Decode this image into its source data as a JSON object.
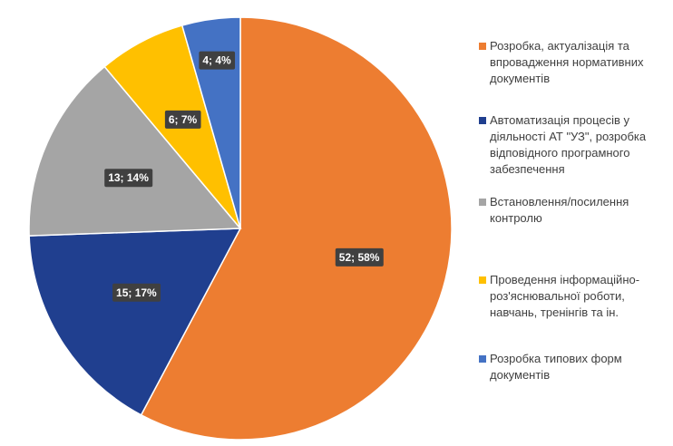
{
  "chart_data": {
    "type": "pie",
    "categories": [
      "Розробка, актуалізація та впровадження нормативних документів",
      "Автоматизація процесів у діяльності АТ \"УЗ\", розробка відповідного програмного забезпечення",
      "Встановлення/посилення контролю",
      "Проведення інформаційно-роз'яснювальної роботи, навчань, тренінгів та ін.",
      "Розробка типових форм документів"
    ],
    "values": [
      52,
      15,
      13,
      6,
      4
    ],
    "value_labels": [
      "52; 58%",
      "15; 17%",
      "13; 14%",
      "6; 7%",
      "4; 4%"
    ],
    "colors": [
      "#ed7d31",
      "#203f8f",
      "#a5a5a5",
      "#ffc000",
      "#4472c4"
    ],
    "legend": "right"
  }
}
